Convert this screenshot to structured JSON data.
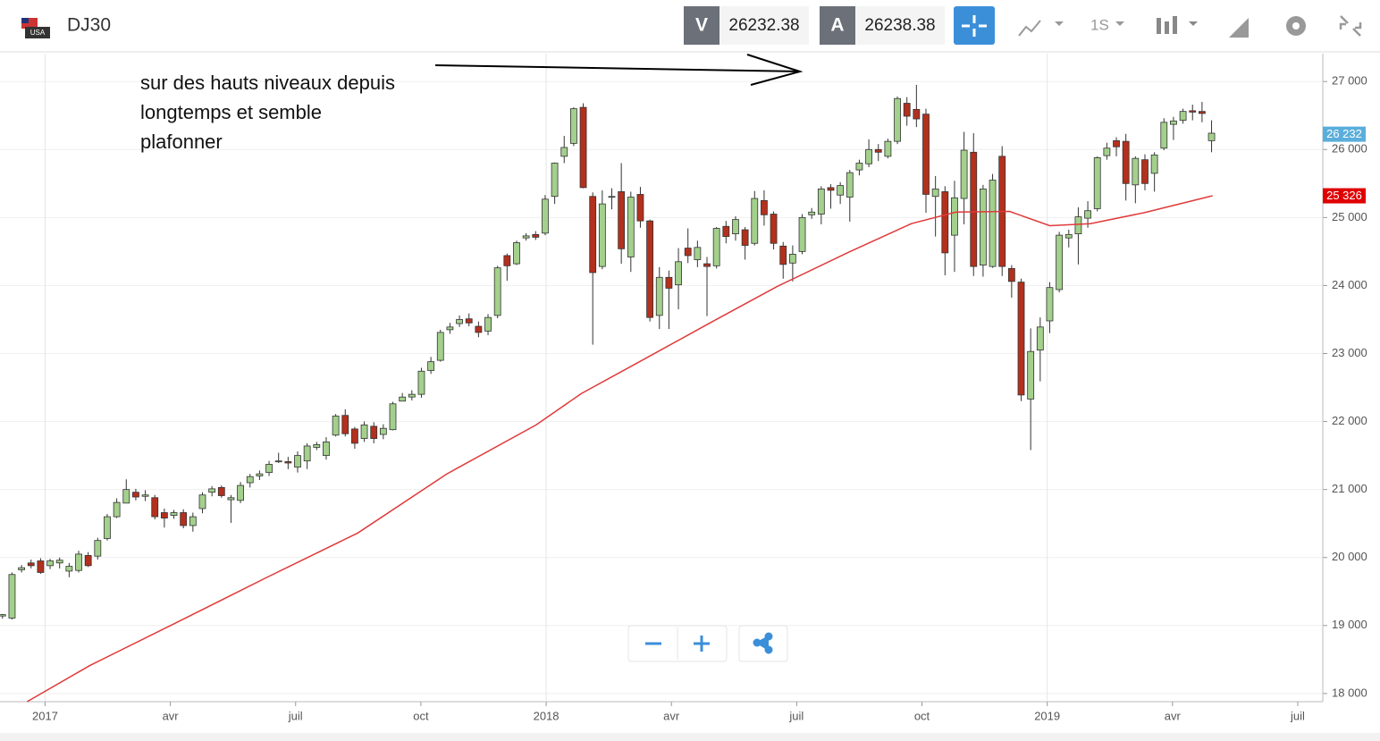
{
  "header": {
    "symbol": "DJ30",
    "bid_label": "V",
    "bid": "26232.38",
    "ask_label": "A",
    "ask": "26238.38",
    "interval": "1S"
  },
  "chart_data": {
    "type": "candlestick",
    "annotation": [
      "sur des hauts niveaux depuis",
      "longtemps et semble",
      "plafonner"
    ],
    "x": [
      2016.915,
      2016.934,
      2016.953,
      2016.972,
      2016.991,
      2017.01,
      2017.029,
      2017.048,
      2017.067,
      2017.086,
      2017.105,
      2017.124,
      2017.143,
      2017.162,
      2017.181,
      2017.2,
      2017.219,
      2017.238,
      2017.257,
      2017.276,
      2017.295,
      2017.314,
      2017.333,
      2017.352,
      2017.371,
      2017.39,
      2017.409,
      2017.428,
      2017.447,
      2017.466,
      2017.485,
      2017.504,
      2017.523,
      2017.542,
      2017.561,
      2017.58,
      2017.599,
      2017.618,
      2017.637,
      2017.656,
      2017.675,
      2017.694,
      2017.713,
      2017.732,
      2017.751,
      2017.77,
      2017.789,
      2017.808,
      2017.827,
      2017.846,
      2017.865,
      2017.884,
      2017.903,
      2017.922,
      2017.941,
      2017.96,
      2017.979,
      2017.998,
      2018.017,
      2018.036,
      2018.055,
      2018.074,
      2018.093,
      2018.112,
      2018.131,
      2018.15,
      2018.169,
      2018.188,
      2018.207,
      2018.226,
      2018.245,
      2018.264,
      2018.283,
      2018.302,
      2018.321,
      2018.34,
      2018.359,
      2018.378,
      2018.397,
      2018.416,
      2018.435,
      2018.454,
      2018.473,
      2018.492,
      2018.511,
      2018.53,
      2018.549,
      2018.568,
      2018.587,
      2018.606,
      2018.625,
      2018.644,
      2018.663,
      2018.682,
      2018.701,
      2018.72,
      2018.739,
      2018.758,
      2018.777,
      2018.796,
      2018.815,
      2018.834,
      2018.853,
      2018.872,
      2018.891,
      2018.91,
      2018.929,
      2018.948,
      2018.967,
      2018.986,
      2019.005,
      2019.024,
      2019.043,
      2019.062,
      2019.081,
      2019.1,
      2019.119,
      2019.138,
      2019.157,
      2019.176,
      2019.195,
      2019.214,
      2019.233,
      2019.252,
      2019.271,
      2019.29,
      2019.309,
      2019.328
    ],
    "open": [
      19140,
      19110,
      19820,
      19920,
      19950,
      19880,
      19920,
      19800,
      19810,
      20030,
      20020,
      20280,
      20600,
      20800,
      20960,
      20900,
      20880,
      20660,
      20620,
      20660,
      20470,
      20720,
      20960,
      21030,
      20850,
      20840,
      21100,
      21200,
      21250,
      21410,
      21410,
      21330,
      21420,
      21620,
      21500,
      21800,
      22090,
      21890,
      21750,
      21930,
      21810,
      21880,
      22300,
      22360,
      22400,
      22750,
      22900,
      23350,
      23440,
      23510,
      23400,
      23330,
      23560,
      24440,
      24320,
      24700,
      24750,
      24770,
      25310,
      25900,
      26090,
      26620,
      25310,
      24280,
      25300,
      25380,
      24420,
      25340,
      24950,
      23560,
      24120,
      24010,
      24550,
      24380,
      24320,
      24290,
      24870,
      24760,
      24820,
      24620,
      25250,
      25050,
      24580,
      24330,
      24500,
      25040,
      25050,
      25440,
      25330,
      25300,
      25700,
      25790,
      26000,
      25900,
      26120,
      26680,
      26590,
      26520,
      25310,
      25380,
      24740,
      25280,
      25960,
      24300,
      24280,
      25900,
      24250,
      24050,
      22330,
      23050,
      23480,
      23940,
      24700,
      24760,
      24990,
      25130,
      25910,
      26130,
      26120,
      25480,
      25850,
      25650,
      26020,
      26370,
      26430,
      26570,
      26560,
      26130
    ],
    "high": [
      19170,
      19780,
      19890,
      19970,
      19990,
      19980,
      20000,
      19920,
      20100,
      20080,
      20290,
      20640,
      20870,
      21150,
      21010,
      20990,
      20920,
      20720,
      20700,
      20710,
      20660,
      20960,
      21050,
      21060,
      20920,
      21110,
      21230,
      21280,
      21420,
      21540,
      21480,
      21560,
      21680,
      21700,
      21770,
      22110,
      22180,
      21920,
      22000,
      21990,
      21960,
      22290,
      22420,
      22460,
      22790,
      22950,
      23350,
      23450,
      23560,
      23590,
      23470,
      23580,
      24290,
      24470,
      24660,
      24770,
      24800,
      25330,
      25810,
      26200,
      26620,
      26680,
      25370,
      25400,
      25430,
      25800,
      25380,
      25450,
      24970,
      24270,
      24220,
      24550,
      24840,
      24660,
      24420,
      24860,
      24950,
      25020,
      24860,
      25390,
      25400,
      25090,
      24640,
      24590,
      25050,
      25140,
      25460,
      25490,
      25520,
      25700,
      25850,
      26150,
      26080,
      26160,
      26780,
      26770,
      26950,
      26600,
      25610,
      25460,
      25540,
      26260,
      26240,
      25480,
      25640,
      26050,
      24300,
      24100,
      23370,
      23530,
      24050,
      24790,
      24820,
      25150,
      25240,
      25900,
      26100,
      26180,
      26230,
      25900,
      25930,
      25960,
      26460,
      26480,
      26600,
      26660,
      26700,
      26430
    ],
    "low": [
      19100,
      19090,
      19780,
      19840,
      19760,
      19830,
      19840,
      19710,
      19780,
      19860,
      19970,
      20250,
      20580,
      20800,
      20840,
      20830,
      20560,
      20440,
      20570,
      20430,
      20380,
      20650,
      20900,
      20880,
      20510,
      20800,
      21030,
      21140,
      21200,
      21390,
      21300,
      21250,
      21300,
      21580,
      21440,
      21780,
      21780,
      21600,
      21700,
      21680,
      21740,
      21870,
      22300,
      22310,
      22350,
      22700,
      22880,
      23290,
      23390,
      23400,
      23240,
      23270,
      23520,
      24070,
      24300,
      24660,
      24670,
      24740,
      25200,
      25800,
      26050,
      25430,
      23130,
      24240,
      25120,
      24320,
      24200,
      24850,
      23470,
      23360,
      23360,
      23650,
      24330,
      24270,
      23550,
      24250,
      24620,
      24660,
      24380,
      24590,
      24880,
      24530,
      24100,
      24060,
      24460,
      24980,
      24900,
      25130,
      25200,
      24940,
      25620,
      25740,
      25830,
      25870,
      26080,
      26350,
      26330,
      25070,
      24720,
      24150,
      24200,
      24900,
      24140,
      24130,
      24260,
      24140,
      23820,
      22300,
      21580,
      22590,
      23300,
      23900,
      24560,
      24310,
      24850,
      25090,
      25850,
      25900,
      25250,
      25210,
      25400,
      25380,
      25990,
      26140,
      26380,
      26430,
      26400,
      25960
    ],
    "close": [
      19160,
      19750,
      19850,
      19880,
      19780,
      19950,
      19960,
      19870,
      20050,
      19880,
      20250,
      20600,
      20810,
      21000,
      20890,
      20920,
      20600,
      20580,
      20660,
      20470,
      20600,
      20920,
      21010,
      20910,
      20880,
      21060,
      21190,
      21230,
      21370,
      21420,
      21390,
      21500,
      21640,
      21660,
      21700,
      22080,
      21820,
      21680,
      21950,
      21750,
      21900,
      22260,
      22360,
      22400,
      22740,
      22880,
      23310,
      23390,
      23500,
      23450,
      23310,
      23530,
      24260,
      24290,
      24630,
      24730,
      24710,
      25270,
      25800,
      26030,
      26600,
      25440,
      24190,
      25200,
      25310,
      24540,
      25300,
      24950,
      23530,
      24120,
      23960,
      24350,
      24440,
      24560,
      24280,
      24840,
      24720,
      24970,
      24590,
      25280,
      25040,
      24620,
      24310,
      24460,
      25000,
      25080,
      25420,
      25400,
      25470,
      25660,
      25800,
      26000,
      25960,
      26120,
      26750,
      26490,
      26450,
      25340,
      25420,
      24480,
      25290,
      25990,
      24280,
      25420,
      25550,
      24280,
      24060,
      22390,
      23030,
      23390,
      23970,
      24740,
      24750,
      25010,
      25100,
      25880,
      26020,
      26040,
      25500,
      25870,
      25500,
      25920,
      26400,
      26420,
      26560,
      26550,
      26530,
      26240
    ],
    "up_color": "#a3d08c",
    "down_color": "#b3301d",
    "moving_average": {
      "color": "#e03a3a",
      "x": [
        2016.964,
        2017.089,
        2017.267,
        2017.446,
        2017.624,
        2017.802,
        2017.98,
        2018.07,
        2018.194,
        2018.337,
        2018.462,
        2018.604,
        2018.729,
        2018.818,
        2018.925,
        2019.005,
        2019.086,
        2019.193,
        2019.33
      ],
      "values": [
        17880,
        18410,
        19060,
        19720,
        20360,
        21230,
        21950,
        22410,
        22910,
        23490,
        23990,
        24490,
        24910,
        25080,
        25090,
        24880,
        24910,
        25070,
        25320
      ]
    },
    "price_tags": [
      {
        "value": 26232,
        "label": "26 232",
        "color": "#5aaedb"
      },
      {
        "value": 25326,
        "label": "25 326",
        "color": "#e00000"
      }
    ],
    "xlim": [
      2016.91,
      2019.55
    ],
    "xticks": [
      2017,
      {
        "value": 2017.25,
        "label": "avr"
      },
      {
        "value": 2017.5,
        "label": "juil"
      },
      {
        "value": 2017.75,
        "label": "oct"
      },
      2018,
      {
        "value": 2018.25,
        "label": "avr"
      },
      {
        "value": 2018.5,
        "label": "juil"
      },
      {
        "value": 2018.75,
        "label": "oct"
      },
      2019,
      {
        "value": 2019.25,
        "label": "avr"
      },
      {
        "value": 2019.5,
        "label": "juil"
      }
    ],
    "ylim": [
      17880,
      27410
    ],
    "yticks": [
      {
        "value": 18000,
        "label": "18 000"
      },
      {
        "value": 19000,
        "label": "19 000"
      },
      {
        "value": 20000,
        "label": "20 000"
      },
      {
        "value": 21000,
        "label": "21 000"
      },
      {
        "value": 22000,
        "label": "22 000"
      },
      {
        "value": 23000,
        "label": "23 000"
      },
      {
        "value": 24000,
        "label": "24 000"
      },
      {
        "value": 25000,
        "label": "25 000"
      },
      {
        "value": 26000,
        "label": "26 000"
      },
      {
        "value": 27000,
        "label": "27 000"
      }
    ],
    "grid": true
  }
}
